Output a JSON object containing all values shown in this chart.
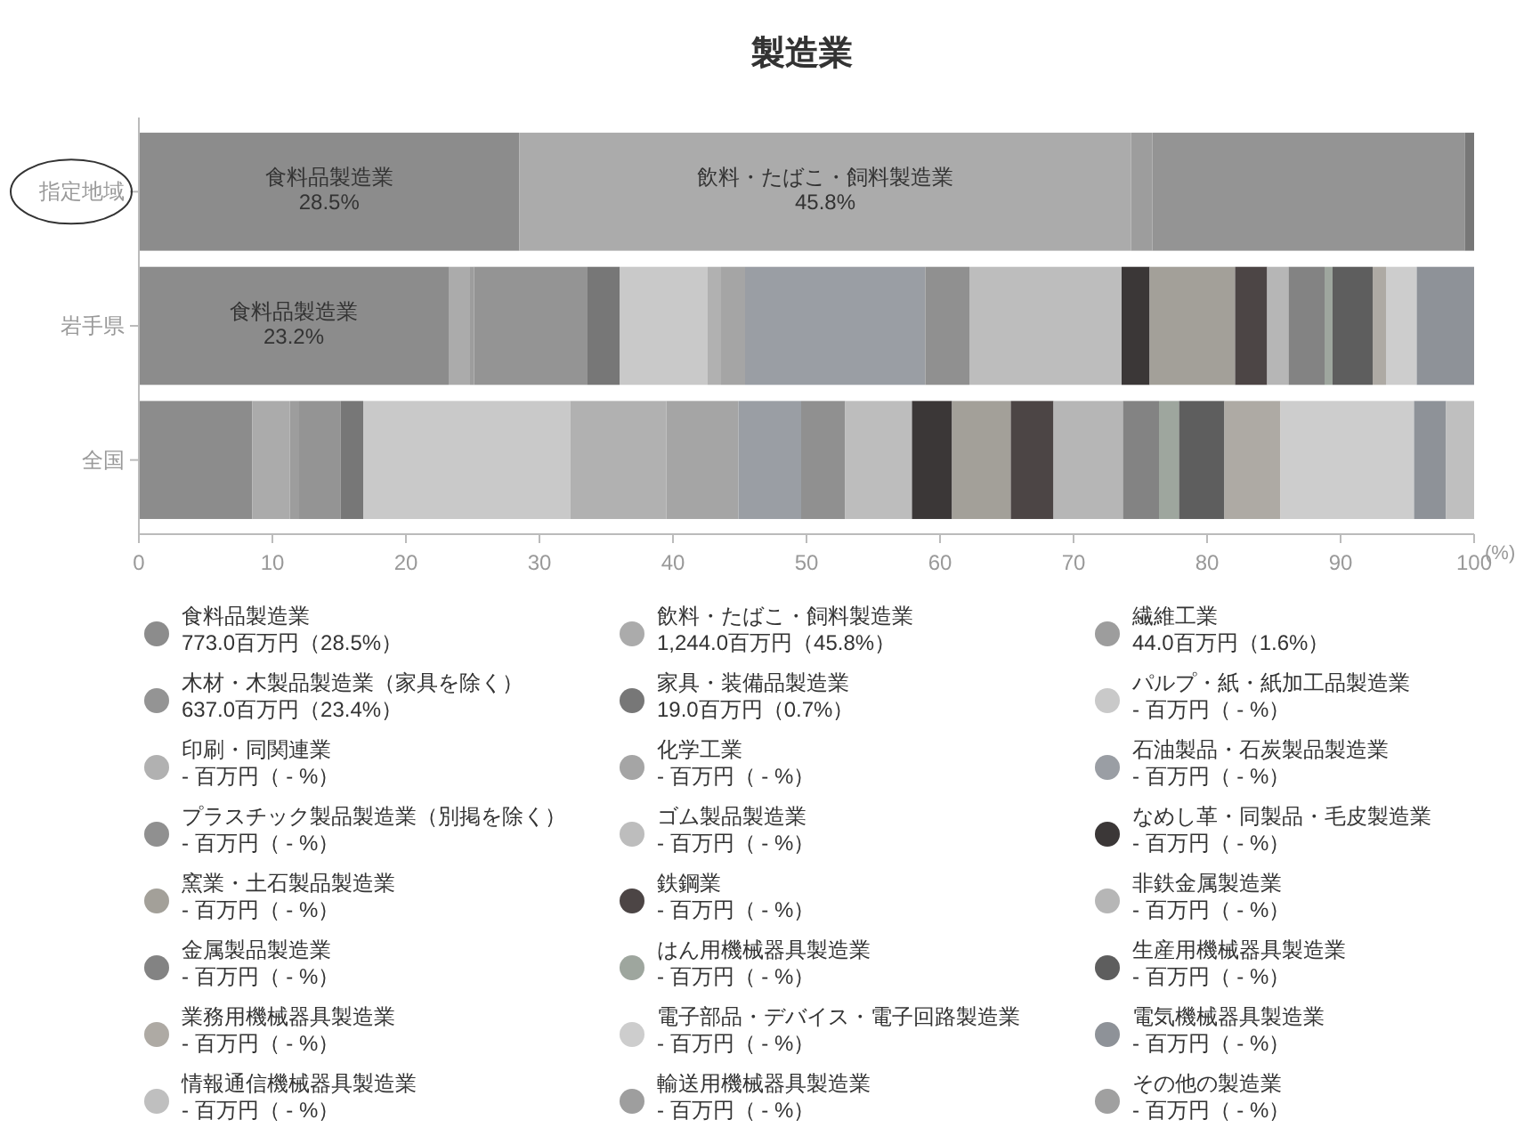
{
  "chart_data": {
    "type": "bar",
    "orientation": "horizontal",
    "stacked": true,
    "title": "製造業",
    "xlabel": "(%)",
    "categories": [
      "指定地域",
      "岩手県",
      "全国"
    ],
    "xlim": [
      0,
      100
    ],
    "xticks": [
      0,
      10,
      20,
      30,
      40,
      50,
      60,
      70,
      80,
      90,
      100
    ],
    "legend": "bottom",
    "series": [
      {
        "name": "食料品製造業\n773.0百万円（28.5%）",
        "color": "#8c8c8c",
        "values": [
          28.5,
          23.2,
          8.5
        ],
        "value_labels": [
          "食料品製造業\n28.5%",
          "食料品製造業\n23.2%",
          null
        ]
      },
      {
        "name": "飲料・たばこ・飼料製造業\n1,244.0百万円（45.8%）",
        "color": "#ababab",
        "values": [
          45.8,
          1.6,
          2.8
        ],
        "value_labels": [
          "飲料・たばこ・飼料製造業\n45.8%",
          null,
          null
        ]
      },
      {
        "name": "繊維工業\n44.0百万円（1.6%）",
        "color": "#9d9d9d",
        "values": [
          1.6,
          0.3,
          0.7
        ]
      },
      {
        "name": "木材・木製品製造業（家具を除く）\n637.0百万円（23.4%）",
        "color": "#949494",
        "values": [
          23.4,
          8.5,
          3.1
        ]
      },
      {
        "name": "家具・装備品製造業\n19.0百万円（0.7%）",
        "color": "#777777",
        "values": [
          0.7,
          2.4,
          1.7
        ]
      },
      {
        "name": "パルプ・紙・紙加工品製造業\n- 百万円（ - %）",
        "color": "#c9c9c9",
        "values": [
          0,
          6.6,
          15.5
        ]
      },
      {
        "name": "印刷・同関連業\n- 百万円（ - %）",
        "color": "#b1b1b1",
        "values": [
          0,
          1.0,
          7.2
        ]
      },
      {
        "name": "化学工業\n- 百万円（ - %）",
        "color": "#a5a5a5",
        "values": [
          0,
          1.8,
          5.4
        ]
      },
      {
        "name": "石油製品・石炭製品製造業\n- 百万円（ - %）",
        "color": "#9a9ea4",
        "values": [
          0,
          13.5,
          4.7
        ]
      },
      {
        "name": "プラスチック製品製造業（別掲を除く）\n- 百万円（ - %）",
        "color": "#909090",
        "values": [
          0,
          3.3,
          3.3
        ]
      },
      {
        "name": "ゴム製品製造業\n- 百万円（ - %）",
        "color": "#bdbdbd",
        "values": [
          0,
          11.4,
          5.0
        ]
      },
      {
        "name": "なめし革・同製品・毛皮製造業\n- 百万円（ - %）",
        "color": "#3b3737",
        "values": [
          0,
          2.1,
          3.0
        ]
      },
      {
        "name": "窯業・土石製品製造業\n- 百万円（ - %）",
        "color": "#a3a099",
        "values": [
          0,
          6.4,
          4.4
        ]
      },
      {
        "name": "鉄鋼業\n- 百万円（ - %）",
        "color": "#4c4545",
        "values": [
          0,
          2.4,
          3.2
        ]
      },
      {
        "name": "非鉄金属製造業\n- 百万円（ - %）",
        "color": "#b6b6b6",
        "values": [
          0,
          1.6,
          5.2
        ]
      },
      {
        "name": "金属製品製造業\n- 百万円（ - %）",
        "color": "#838383",
        "values": [
          0,
          2.7,
          2.7
        ]
      },
      {
        "name": "はん用機械器具製造業\n- 百万円（ - %）",
        "color": "#9ea69e",
        "values": [
          0,
          0.6,
          1.5
        ]
      },
      {
        "name": "生産用機械器具製造業\n- 百万円（ - %）",
        "color": "#5e5e5e",
        "values": [
          0,
          3.0,
          3.4
        ]
      },
      {
        "name": "業務用機械器具製造業\n- 百万円（ - %）",
        "color": "#aeaaa4",
        "values": [
          0,
          1.0,
          4.2
        ]
      },
      {
        "name": "電子部品・デバイス・電子回路製造業\n- 百万円（ - %）",
        "color": "#cdcdcd",
        "values": [
          0,
          2.3,
          10.0
        ]
      },
      {
        "name": "電気機械器具製造業\n- 百万円（ - %）",
        "color": "#8e9298",
        "values": [
          0,
          4.3,
          2.4
        ]
      },
      {
        "name": "情報通信機械器具製造業\n- 百万円（ - %）",
        "color": "#bfbfbf",
        "values": [
          0,
          0,
          2.1
        ]
      },
      {
        "name": "輸送用機械器具製造業\n- 百万円（ - %）",
        "color": "#9e9e9e",
        "values": [
          0,
          0,
          0
        ]
      },
      {
        "name": "その他の製造業\n- 百万円（ - %）",
        "color": "#a0a0a0",
        "values": [
          0,
          0,
          0
        ]
      }
    ]
  }
}
